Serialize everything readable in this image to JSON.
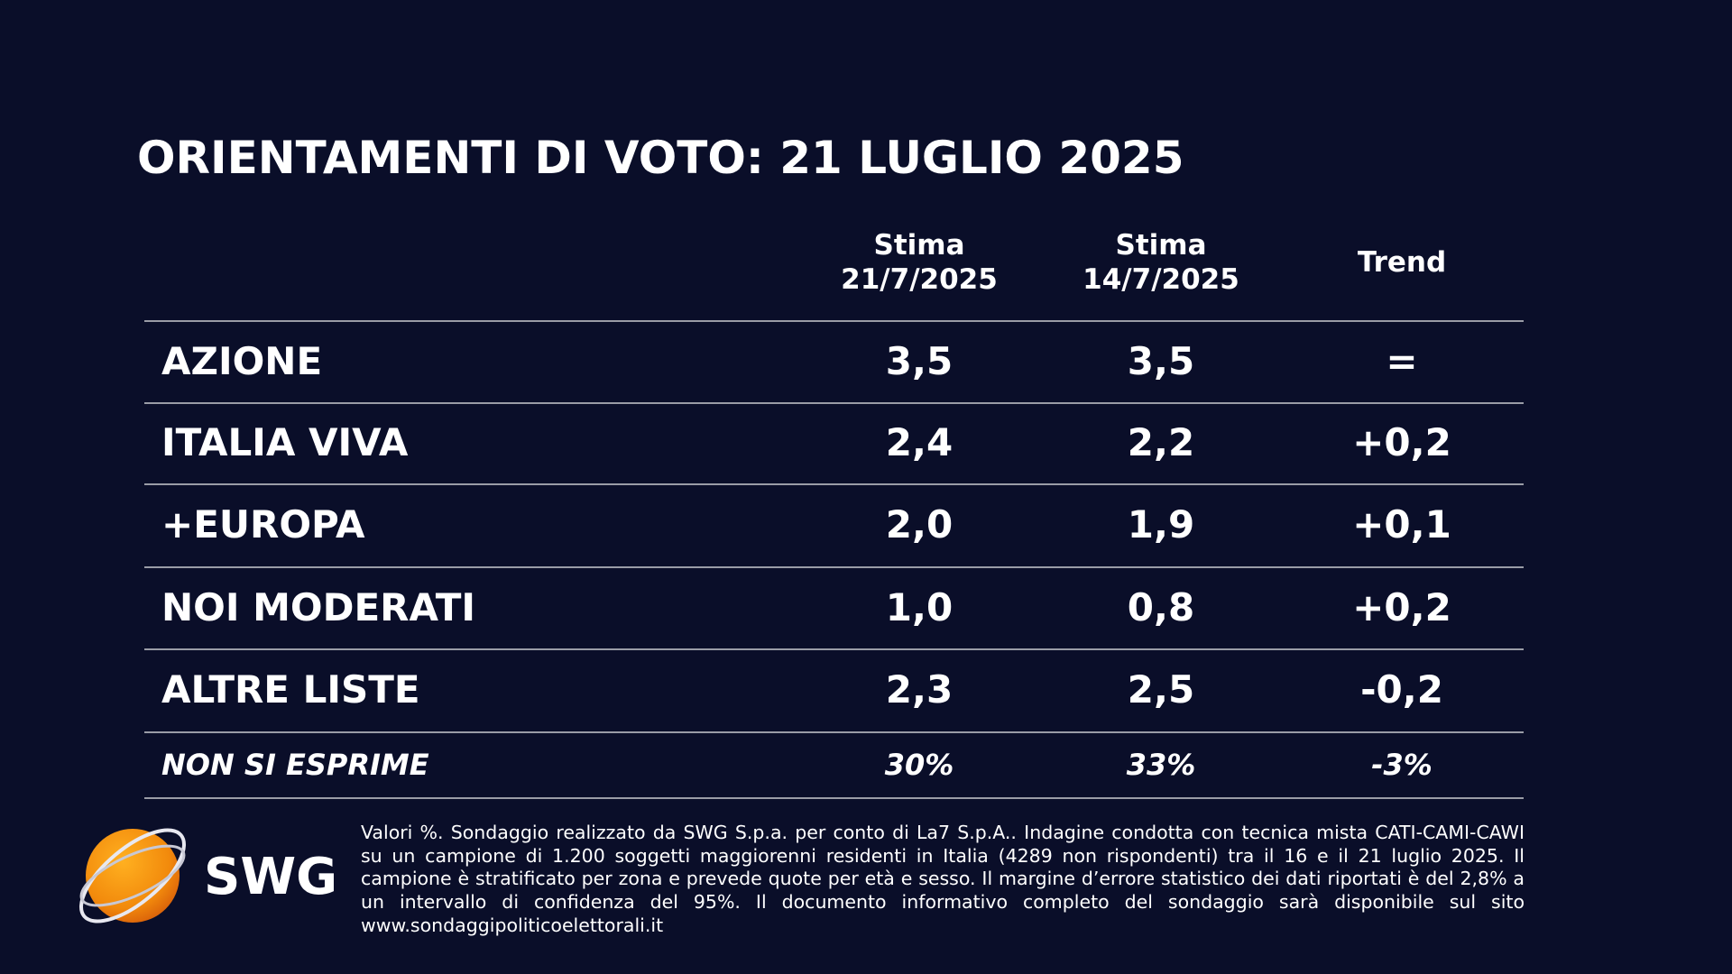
{
  "title": "ORIENTAMENTI DI VOTO: 21 LUGLIO 2025",
  "table": {
    "headers": [
      [
        "Stima",
        "21/7/2025"
      ],
      [
        "Stima",
        "14/7/2025"
      ],
      [
        "Trend"
      ]
    ],
    "rows": [
      [
        "AZIONE",
        "3,5",
        "3,5",
        "="
      ],
      [
        "ITALIA VIVA",
        "2,4",
        "2,2",
        "+0,2"
      ],
      [
        "+EUROPA",
        "2,0",
        "1,9",
        "+0,1"
      ],
      [
        "NOI MODERATI",
        "1,0",
        "0,8",
        "+0,2"
      ],
      [
        "ALTRE LISTE",
        "2,3",
        "2,5",
        "-0,2"
      ],
      [
        "NON SI ESPRIME",
        "30%",
        "33%",
        "-3%"
      ]
    ]
  },
  "footnote": "Valori %. Sondaggio realizzato da SWG S.p.a. per conto di La7 S.p.A.. Indagine condotta con tecnica mista CATI-CAMI-CAWI su un campione di 1.200 soggetti maggiorenni residenti in Italia (4289 non rispondenti) tra il 16 e il 21 luglio 2025. Il campione è stratificato per zona e prevede quote per età e sesso. Il margine d’errore statistico dei dati riportati è del 2,8% a un intervallo di confidenza del 95%. Il documento informativo completo del sondaggio sarà disponibile sul sito www.sondaggipoliticoelettorali.it",
  "logo": "SWG"
}
